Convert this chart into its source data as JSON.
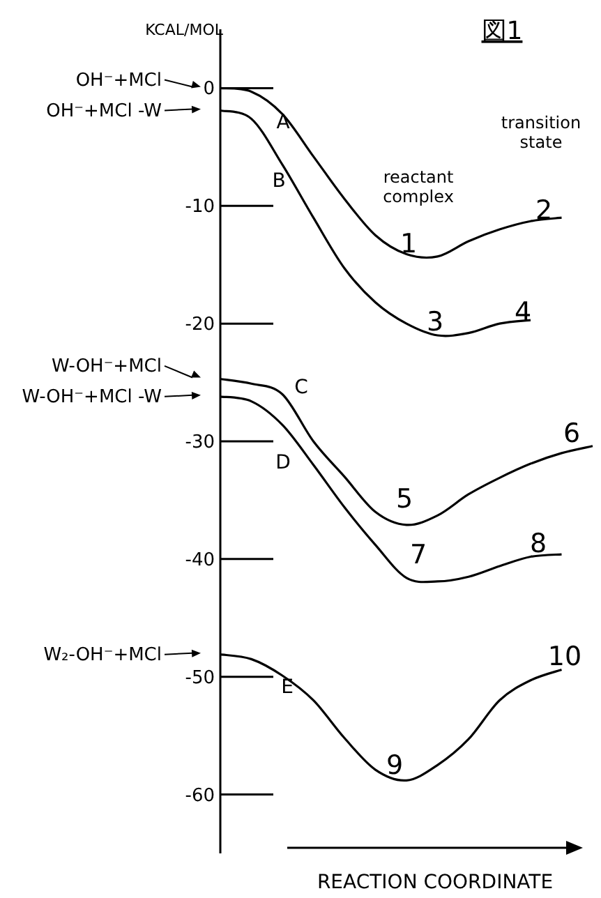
{
  "chart_data": {
    "type": "line",
    "title": "図1",
    "ylabel": "KCAL/MOL",
    "xlabel": "REACTION COORDINATE",
    "annotations": [
      "reactant complex",
      "transition state",
      "A",
      "B",
      "C",
      "D",
      "E",
      "1",
      "2",
      "3",
      "4",
      "5",
      "6",
      "7",
      "8",
      "9",
      "10"
    ],
    "categories": [
      null,
      null,
      null,
      null,
      null,
      null,
      null,
      null,
      null,
      null,
      null,
      null,
      null
    ],
    "ylim": [
      -65,
      5
    ],
    "yticks": [
      0,
      -10,
      -20,
      -30,
      -40,
      -50,
      -60
    ],
    "grid": false,
    "legend": "left",
    "marker": "none",
    "line_style": "solid",
    "series": [
      {
        "name": "OH⁻+MCl",
        "color": "#000000",
        "values": [
          0,
          -0.3,
          -2.2,
          -5.8,
          -9.4,
          -12.5,
          -14.1,
          -14.3,
          -13.0,
          -12.0,
          -11.3,
          -11.0,
          null
        ]
      },
      {
        "name": "OH⁻+MCl -W",
        "color": "#000000",
        "values": [
          -1.9,
          -2.6,
          -6.5,
          -11.0,
          -15.3,
          -18.2,
          -20.0,
          -21.0,
          -20.8,
          -20.0,
          -19.7,
          null,
          null
        ]
      },
      {
        "name": "W-OH⁻+MCl",
        "color": "#000000",
        "values": [
          -24.7,
          -25.1,
          -26.0,
          -30.0,
          -33.0,
          -36.0,
          -37.1,
          -36.3,
          -34.5,
          -33.1,
          -31.9,
          -31.0,
          -30.4
        ]
      },
      {
        "name": "W-OH⁻+MCl -W",
        "color": "#000000",
        "values": [
          -26.2,
          -26.6,
          -28.6,
          -32.0,
          -35.6,
          -38.8,
          -41.6,
          -41.9,
          -41.5,
          -40.6,
          -39.8,
          -39.6,
          null
        ]
      },
      {
        "name": "W₂-OH⁻+MCl",
        "color": "#000000",
        "values": [
          -48.1,
          -48.5,
          -49.9,
          -52.0,
          -55.2,
          -57.9,
          -58.8,
          -57.5,
          -55.3,
          -52.0,
          -50.3,
          -49.4,
          null
        ]
      }
    ]
  }
}
